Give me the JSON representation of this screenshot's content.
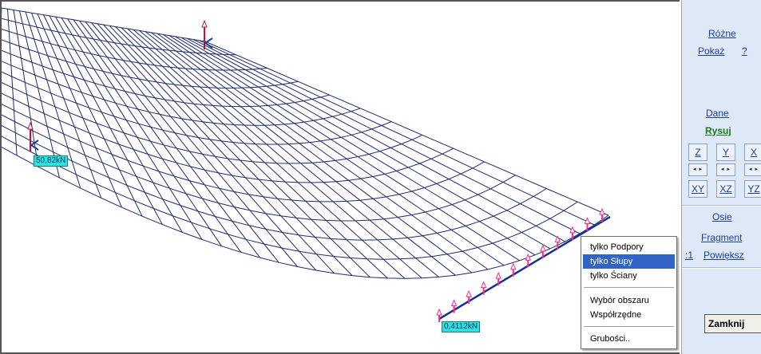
{
  "viewport": {
    "labels": {
      "left_force": "50,82kN",
      "bottom_force": "0,4112kN"
    }
  },
  "panel": {
    "rozne": "Różne",
    "pokaz": "Pokaż",
    "pokaz_extra": "?",
    "dane": "Dane",
    "rysuj": "Rysuj",
    "axes": {
      "z": "Z",
      "y": "Y",
      "x": "X",
      "xy": "XY",
      "xz": "XZ",
      "yz": "YZ"
    },
    "arrows": "◂ ▸",
    "osie": "Osie",
    "fragment": "Fragment",
    "scale": ":1",
    "powieksz": "Powiększ",
    "close": "Zamknij"
  },
  "context_menu": {
    "items": [
      "tylko Podpory",
      "tylko Słupy",
      "tylko Ściany",
      "Wybór obszaru",
      "Współrzędne",
      "Grubości.."
    ],
    "selected": "tylko Słupy"
  },
  "colors": {
    "mesh": "#1f2a6b",
    "support_arrow": "#ff2a8a",
    "label_bg": "#33e0e0",
    "highlight": "#3164c6"
  }
}
